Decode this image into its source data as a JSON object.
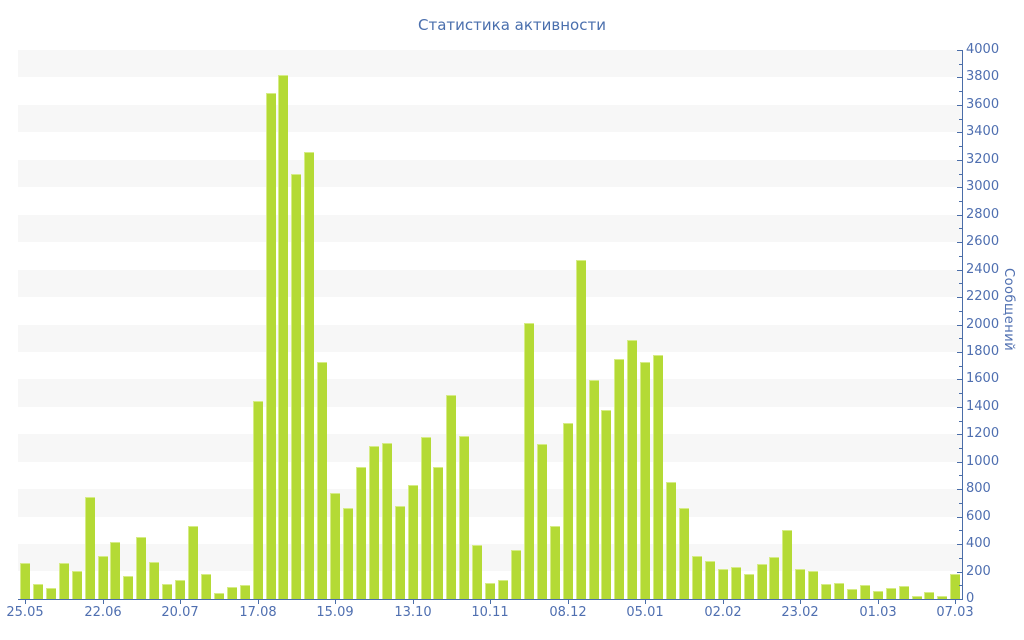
{
  "title": "Статистика активности",
  "chart_data": {
    "type": "bar",
    "title": "Статистика активности",
    "ylabel": "Сообщений",
    "xlabel": "",
    "ylim": [
      0,
      4000
    ],
    "y_axis": {
      "min": 0,
      "max": 4000,
      "major_tick_step": 200,
      "minor_tick_step": 100,
      "side": "right"
    },
    "grid": "alternating horizontal bands of 200 units",
    "legend_position": "none",
    "x_tick_labels": [
      "25.05",
      "22.06",
      "20.07",
      "17.08",
      "15.09",
      "13.10",
      "10.11",
      "08.12",
      "05.01",
      "02.02",
      "23.02",
      "01.03",
      "07.03"
    ],
    "x_tick_every_n_bars": 6,
    "values": [
      260,
      110,
      80,
      260,
      205,
      740,
      310,
      415,
      165,
      450,
      270,
      110,
      135,
      530,
      180,
      45,
      90,
      105,
      1440,
      3690,
      3815,
      3095,
      3260,
      1730,
      770,
      660,
      965,
      1115,
      1140,
      680,
      830,
      1180,
      960,
      1485,
      1190,
      395,
      120,
      140,
      360,
      2010,
      1130,
      530,
      1280,
      2470,
      1595,
      1380,
      1750,
      1890,
      1730,
      1780,
      850,
      660,
      310,
      280,
      215,
      235,
      180,
      255,
      305,
      505,
      220,
      205,
      110,
      115,
      75,
      105,
      60,
      80,
      95,
      20,
      50,
      20,
      180
    ],
    "colors": {
      "bar_fill": "#b4da35",
      "bar_edge": "#d6ec86",
      "axis": "#4a6da8",
      "tick_text": "#4f6fb0",
      "title_text": "#4a6fad",
      "stripe_band": "#f7f7f7",
      "background": "#ffffff"
    }
  }
}
